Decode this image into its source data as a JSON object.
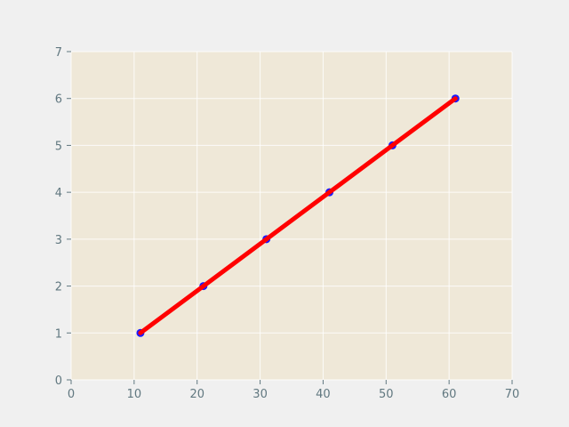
{
  "chart_data": {
    "type": "line",
    "title": "",
    "xlabel": "",
    "ylabel": "",
    "xlim": [
      0,
      70
    ],
    "ylim": [
      0,
      7
    ],
    "x_ticks": [
      0,
      10,
      20,
      30,
      40,
      50,
      60,
      70
    ],
    "y_ticks": [
      0,
      1,
      2,
      3,
      4,
      5,
      6,
      7
    ],
    "grid": true,
    "series": [
      {
        "x": [
          11,
          21,
          31,
          41,
          51,
          61
        ],
        "y": [
          1,
          2,
          3,
          4,
          5,
          6
        ],
        "markers": true,
        "line": true
      }
    ]
  },
  "colors": {
    "figure_background": "#f0f0f0",
    "plot_background": "#efe8d8",
    "marker": "#1a1aff",
    "line": "#ff0000",
    "tick_text": "#617880"
  }
}
